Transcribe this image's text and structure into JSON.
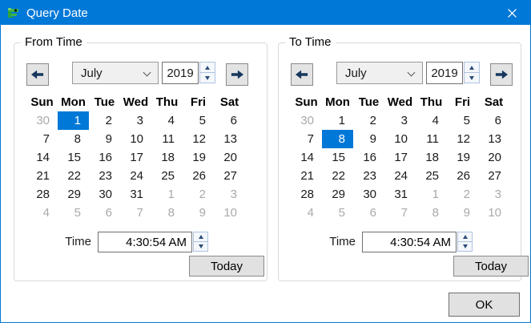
{
  "window": {
    "title": "Query Date"
  },
  "colors": {
    "accent": "#0078D7",
    "selected_bg": "#0078D7",
    "muted_text": "#A9A9A9",
    "button_bg": "#E1E1E1",
    "arrow_glyph": "#17375D"
  },
  "panels": [
    {
      "title": "From Time",
      "month": "July",
      "year": "2019",
      "day_headers": [
        "Sun",
        "Mon",
        "Tue",
        "Wed",
        "Thu",
        "Fri",
        "Sat"
      ],
      "weeks": [
        [
          {
            "t": "30",
            "muted": true
          },
          {
            "t": "1",
            "selected": true
          },
          {
            "t": "2"
          },
          {
            "t": "3"
          },
          {
            "t": "4"
          },
          {
            "t": "5"
          },
          {
            "t": "6"
          }
        ],
        [
          {
            "t": "7"
          },
          {
            "t": "8"
          },
          {
            "t": "9"
          },
          {
            "t": "10"
          },
          {
            "t": "11"
          },
          {
            "t": "12"
          },
          {
            "t": "13"
          }
        ],
        [
          {
            "t": "14"
          },
          {
            "t": "15"
          },
          {
            "t": "16"
          },
          {
            "t": "17"
          },
          {
            "t": "18"
          },
          {
            "t": "19"
          },
          {
            "t": "20"
          }
        ],
        [
          {
            "t": "21"
          },
          {
            "t": "22"
          },
          {
            "t": "23"
          },
          {
            "t": "24"
          },
          {
            "t": "25"
          },
          {
            "t": "26"
          },
          {
            "t": "27"
          }
        ],
        [
          {
            "t": "28"
          },
          {
            "t": "29"
          },
          {
            "t": "30"
          },
          {
            "t": "31"
          },
          {
            "t": "1",
            "muted": true
          },
          {
            "t": "2",
            "muted": true
          },
          {
            "t": "3",
            "muted": true
          }
        ],
        [
          {
            "t": "4",
            "muted": true
          },
          {
            "t": "5",
            "muted": true
          },
          {
            "t": "6",
            "muted": true
          },
          {
            "t": "7",
            "muted": true
          },
          {
            "t": "8",
            "muted": true
          },
          {
            "t": "9",
            "muted": true
          },
          {
            "t": "10",
            "muted": true
          }
        ]
      ],
      "time_label": "Time",
      "time_value": "4:30:54 AM",
      "today_label": "Today"
    },
    {
      "title": "To Time",
      "month": "July",
      "year": "2019",
      "day_headers": [
        "Sun",
        "Mon",
        "Tue",
        "Wed",
        "Thu",
        "Fri",
        "Sat"
      ],
      "weeks": [
        [
          {
            "t": "30",
            "muted": true
          },
          {
            "t": "1"
          },
          {
            "t": "2"
          },
          {
            "t": "3"
          },
          {
            "t": "4"
          },
          {
            "t": "5"
          },
          {
            "t": "6"
          }
        ],
        [
          {
            "t": "7"
          },
          {
            "t": "8",
            "selected": true
          },
          {
            "t": "9"
          },
          {
            "t": "10"
          },
          {
            "t": "11"
          },
          {
            "t": "12"
          },
          {
            "t": "13"
          }
        ],
        [
          {
            "t": "14"
          },
          {
            "t": "15"
          },
          {
            "t": "16"
          },
          {
            "t": "17"
          },
          {
            "t": "18"
          },
          {
            "t": "19"
          },
          {
            "t": "20"
          }
        ],
        [
          {
            "t": "21"
          },
          {
            "t": "22"
          },
          {
            "t": "23"
          },
          {
            "t": "24"
          },
          {
            "t": "25"
          },
          {
            "t": "26"
          },
          {
            "t": "27"
          }
        ],
        [
          {
            "t": "28"
          },
          {
            "t": "29"
          },
          {
            "t": "30"
          },
          {
            "t": "31"
          },
          {
            "t": "1",
            "muted": true
          },
          {
            "t": "2",
            "muted": true
          },
          {
            "t": "3",
            "muted": true
          }
        ],
        [
          {
            "t": "4",
            "muted": true
          },
          {
            "t": "5",
            "muted": true
          },
          {
            "t": "6",
            "muted": true
          },
          {
            "t": "7",
            "muted": true
          },
          {
            "t": "8",
            "muted": true
          },
          {
            "t": "9",
            "muted": true
          },
          {
            "t": "10",
            "muted": true
          }
        ]
      ],
      "time_label": "Time",
      "time_value": "4:30:54 AM",
      "today_label": "Today"
    }
  ],
  "ok_label": "OK"
}
